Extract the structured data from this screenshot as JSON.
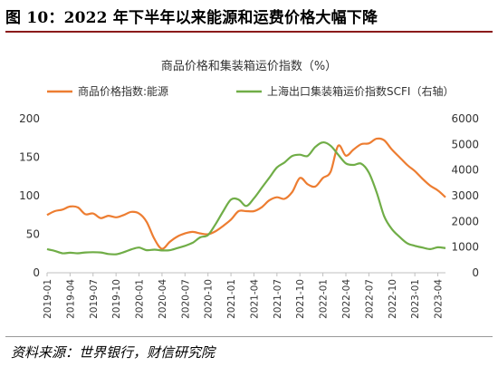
{
  "figure": {
    "title": "图 10：2022 年下半年以来能源和运费价格大幅下降",
    "source": "资料来源：世界银行，财信研究院"
  },
  "chart_data": {
    "type": "line",
    "title": "商品价格和集装箱运价指数（%）",
    "categories": [
      "2019-01",
      "2019-04",
      "2019-07",
      "2019-10",
      "2020-01",
      "2020-04",
      "2020-07",
      "2020-10",
      "2021-01",
      "2021-04",
      "2021-07",
      "2021-10",
      "2022-01",
      "2022-04",
      "2022-07",
      "2022-10",
      "2023-01",
      "2023-04"
    ],
    "x_start": "2019-01",
    "x_end": "2023-05",
    "left_axis": {
      "ylim": [
        0,
        200
      ],
      "ticks": [
        "0",
        "50",
        "100",
        "150",
        "200"
      ]
    },
    "right_axis": {
      "ylim": [
        0,
        6000
      ],
      "ticks": [
        "0",
        "1000",
        "2000",
        "3000",
        "4000",
        "5000",
        "6000"
      ]
    },
    "grid": false,
    "legend_position": "top",
    "series": [
      {
        "name": "商品价格指数:能源",
        "axis": "left",
        "color": "#ed7d31",
        "points": [
          [
            "2019-01",
            75
          ],
          [
            "2019-02",
            80
          ],
          [
            "2019-03",
            82
          ],
          [
            "2019-04",
            86
          ],
          [
            "2019-05",
            85
          ],
          [
            "2019-06",
            76
          ],
          [
            "2019-07",
            77
          ],
          [
            "2019-08",
            71
          ],
          [
            "2019-09",
            74
          ],
          [
            "2019-10",
            72
          ],
          [
            "2019-11",
            75
          ],
          [
            "2019-12",
            79
          ],
          [
            "2020-01",
            77
          ],
          [
            "2020-02",
            66
          ],
          [
            "2020-03",
            44
          ],
          [
            "2020-04",
            31
          ],
          [
            "2020-05",
            40
          ],
          [
            "2020-06",
            47
          ],
          [
            "2020-07",
            51
          ],
          [
            "2020-08",
            53
          ],
          [
            "2020-09",
            51
          ],
          [
            "2020-10",
            50
          ],
          [
            "2020-11",
            54
          ],
          [
            "2020-12",
            61
          ],
          [
            "2021-01",
            69
          ],
          [
            "2021-02",
            80
          ],
          [
            "2021-03",
            80
          ],
          [
            "2021-04",
            80
          ],
          [
            "2021-05",
            85
          ],
          [
            "2021-06",
            94
          ],
          [
            "2021-07",
            98
          ],
          [
            "2021-08",
            96
          ],
          [
            "2021-09",
            105
          ],
          [
            "2021-10",
            123
          ],
          [
            "2021-11",
            115
          ],
          [
            "2021-12",
            112
          ],
          [
            "2022-01",
            123
          ],
          [
            "2022-02",
            131
          ],
          [
            "2022-03",
            165
          ],
          [
            "2022-04",
            152
          ],
          [
            "2022-05",
            160
          ],
          [
            "2022-06",
            167
          ],
          [
            "2022-07",
            168
          ],
          [
            "2022-08",
            174
          ],
          [
            "2022-09",
            172
          ],
          [
            "2022-10",
            160
          ],
          [
            "2022-11",
            150
          ],
          [
            "2022-12",
            140
          ],
          [
            "2023-01",
            132
          ],
          [
            "2023-02",
            122
          ],
          [
            "2023-03",
            113
          ],
          [
            "2023-04",
            107
          ],
          [
            "2023-05",
            98
          ]
        ]
      },
      {
        "name": "上海出口集装箱运价指数SCFI（右轴）",
        "axis": "right",
        "color": "#70ad47",
        "points": [
          [
            "2019-01",
            920
          ],
          [
            "2019-02",
            850
          ],
          [
            "2019-03",
            760
          ],
          [
            "2019-04",
            780
          ],
          [
            "2019-05",
            760
          ],
          [
            "2019-06",
            790
          ],
          [
            "2019-07",
            800
          ],
          [
            "2019-08",
            790
          ],
          [
            "2019-09",
            730
          ],
          [
            "2019-10",
            720
          ],
          [
            "2019-11",
            800
          ],
          [
            "2019-12",
            910
          ],
          [
            "2020-01",
            980
          ],
          [
            "2020-02",
            880
          ],
          [
            "2020-03",
            900
          ],
          [
            "2020-04",
            870
          ],
          [
            "2020-05",
            880
          ],
          [
            "2020-06",
            960
          ],
          [
            "2020-07",
            1050
          ],
          [
            "2020-08",
            1170
          ],
          [
            "2020-09",
            1380
          ],
          [
            "2020-10",
            1470
          ],
          [
            "2020-11",
            1900
          ],
          [
            "2020-12",
            2400
          ],
          [
            "2021-01",
            2850
          ],
          [
            "2021-02",
            2850
          ],
          [
            "2021-03",
            2600
          ],
          [
            "2021-04",
            2900
          ],
          [
            "2021-05",
            3300
          ],
          [
            "2021-06",
            3700
          ],
          [
            "2021-07",
            4100
          ],
          [
            "2021-08",
            4300
          ],
          [
            "2021-09",
            4550
          ],
          [
            "2021-10",
            4600
          ],
          [
            "2021-11",
            4550
          ],
          [
            "2021-12",
            4900
          ],
          [
            "2022-01",
            5080
          ],
          [
            "2022-02",
            4950
          ],
          [
            "2022-03",
            4600
          ],
          [
            "2022-04",
            4260
          ],
          [
            "2022-05",
            4200
          ],
          [
            "2022-06",
            4250
          ],
          [
            "2022-07",
            3900
          ],
          [
            "2022-08",
            3150
          ],
          [
            "2022-09",
            2200
          ],
          [
            "2022-10",
            1700
          ],
          [
            "2022-11",
            1400
          ],
          [
            "2022-12",
            1150
          ],
          [
            "2023-01",
            1050
          ],
          [
            "2023-02",
            980
          ],
          [
            "2023-03",
            920
          ],
          [
            "2023-04",
            990
          ],
          [
            "2023-05",
            960
          ]
        ]
      }
    ]
  }
}
